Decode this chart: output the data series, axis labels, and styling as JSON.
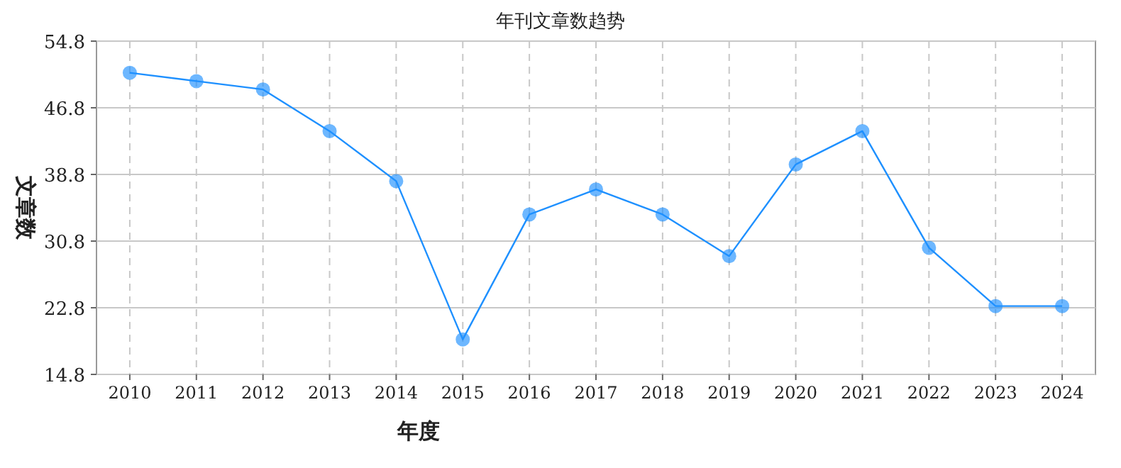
{
  "chart_data": {
    "type": "line",
    "title": "年刊文章数趋势",
    "xlabel": "年度",
    "ylabel": "文章数",
    "categories": [
      "2010",
      "2011",
      "2012",
      "2013",
      "2014",
      "2015",
      "2016",
      "2017",
      "2018",
      "2019",
      "2020",
      "2021",
      "2022",
      "2023",
      "2024"
    ],
    "values": [
      51,
      50,
      49,
      44,
      38,
      19,
      34,
      37,
      34,
      29,
      40,
      44,
      30,
      23,
      23
    ],
    "color": "#1e90ff",
    "marker": "circle",
    "grid": true,
    "ylim": [
      14.8,
      54.8
    ],
    "yticks": [
      14.8,
      22.8,
      30.8,
      38.8,
      46.8,
      54.8
    ]
  }
}
